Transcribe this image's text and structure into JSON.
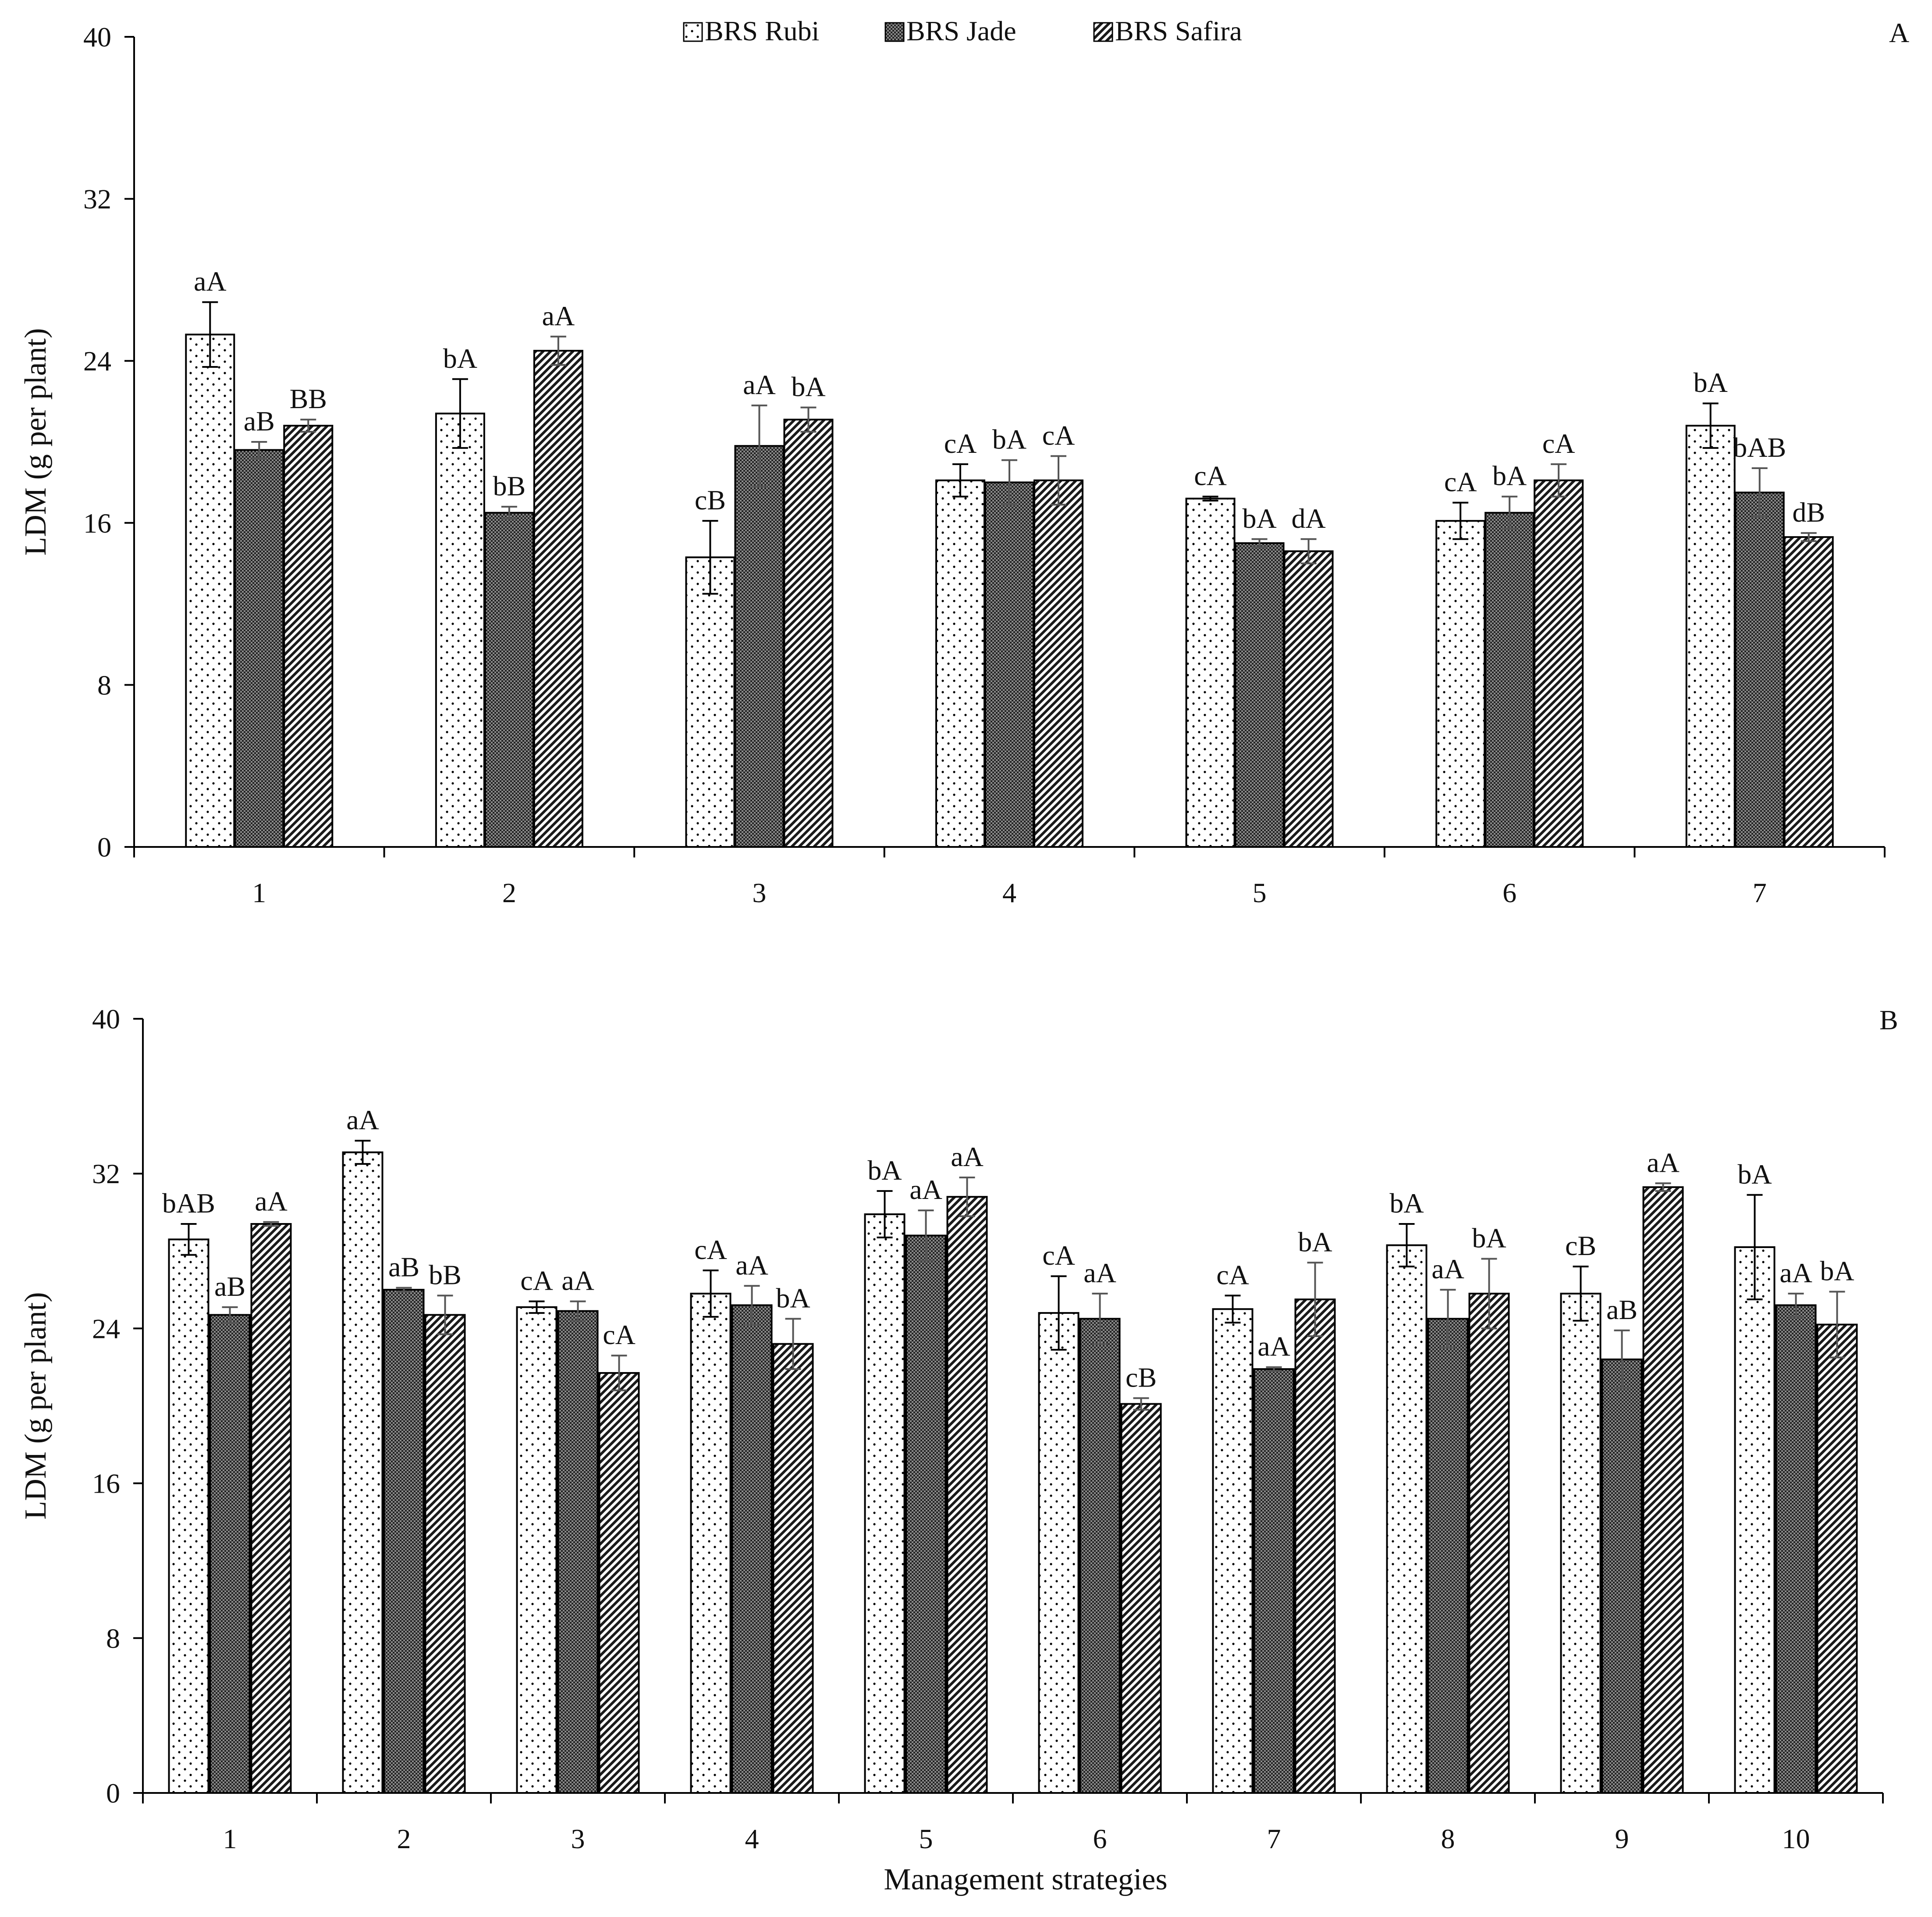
{
  "legend": {
    "entries": [
      {
        "name": "BRS Rubi",
        "pattern": "dots"
      },
      {
        "name": "BRS Jade",
        "pattern": "grid"
      },
      {
        "name": "BRS Safira",
        "pattern": "diagonal"
      }
    ]
  },
  "x_axis_title": "Management strategies",
  "colors": {
    "stroke": "#000000",
    "errorbar": "#555555",
    "text": "#111111"
  },
  "chart_data": [
    {
      "type": "bar",
      "panel_label": "A",
      "ylabel": "LDM (g per plant)",
      "xlabel": "",
      "ylim": [
        0,
        40
      ],
      "yticks": [
        0,
        8,
        16,
        24,
        32,
        40
      ],
      "categories": [
        "1",
        "2",
        "3",
        "4",
        "5",
        "6",
        "7"
      ],
      "series": [
        {
          "name": "BRS Rubi",
          "values": [
            25.3,
            21.4,
            14.3,
            18.1,
            17.2,
            16.1,
            20.8
          ],
          "errors": [
            1.6,
            1.7,
            1.8,
            0.8,
            0.1,
            0.9,
            1.1
          ],
          "labels": [
            "aA",
            "bA",
            "cB",
            "cA",
            "cA",
            "cA",
            "bA"
          ]
        },
        {
          "name": "BRS Jade",
          "values": [
            19.6,
            16.5,
            19.8,
            18.0,
            15.0,
            16.5,
            17.5
          ],
          "errors": [
            0.4,
            0.3,
            2.0,
            1.1,
            0.2,
            0.8,
            1.2
          ],
          "labels": [
            "aB",
            "bB",
            "aA",
            "bA",
            "bA",
            "bA",
            "bAB"
          ]
        },
        {
          "name": "BRS Safira",
          "values": [
            20.8,
            24.5,
            21.1,
            18.1,
            14.6,
            18.1,
            15.3
          ],
          "errors": [
            0.3,
            0.7,
            0.6,
            1.2,
            0.6,
            0.8,
            0.2
          ],
          "labels": [
            "BB",
            "aA",
            "bA",
            "cA",
            "dA",
            "cA",
            "dB"
          ]
        }
      ]
    },
    {
      "type": "bar",
      "panel_label": "B",
      "ylabel": "LDM (g per plant)",
      "xlabel": "Management strategies",
      "ylim": [
        0,
        40
      ],
      "yticks": [
        0,
        8,
        16,
        24,
        32,
        40
      ],
      "categories": [
        "1",
        "2",
        "3",
        "4",
        "5",
        "6",
        "7",
        "8",
        "9",
        "10"
      ],
      "series": [
        {
          "name": "BRS Rubi",
          "values": [
            28.6,
            33.1,
            25.1,
            25.8,
            29.9,
            24.8,
            25.0,
            28.3,
            25.8,
            28.2
          ],
          "errors": [
            0.8,
            0.6,
            0.3,
            1.2,
            1.2,
            1.9,
            0.7,
            1.1,
            1.4,
            2.7
          ],
          "labels": [
            "bAB",
            "aA",
            "cA",
            "cA",
            "bA",
            "cA",
            "cA",
            "bA",
            "cB",
            "bA"
          ]
        },
        {
          "name": "BRS Jade",
          "values": [
            24.7,
            26.0,
            24.9,
            25.2,
            28.8,
            24.5,
            21.9,
            24.5,
            22.4,
            25.2
          ],
          "errors": [
            0.4,
            0.1,
            0.5,
            1.0,
            1.3,
            1.3,
            0.1,
            1.5,
            1.5,
            0.6
          ],
          "labels": [
            "aB",
            "aB",
            "aA",
            "aA",
            "aA",
            "aA",
            "aA",
            "aA",
            "aB",
            "aA"
          ]
        },
        {
          "name": "BRS Safira",
          "values": [
            29.4,
            24.7,
            21.7,
            23.2,
            30.8,
            20.1,
            25.5,
            25.8,
            31.3,
            24.2
          ],
          "errors": [
            0.1,
            1.0,
            0.9,
            1.3,
            1.0,
            0.3,
            1.9,
            1.8,
            0.2,
            1.7
          ],
          "labels": [
            "aA",
            "bB",
            "cA",
            "bA",
            "aA",
            "cB",
            "bA",
            "bA",
            "aA",
            "bA"
          ]
        }
      ]
    }
  ]
}
